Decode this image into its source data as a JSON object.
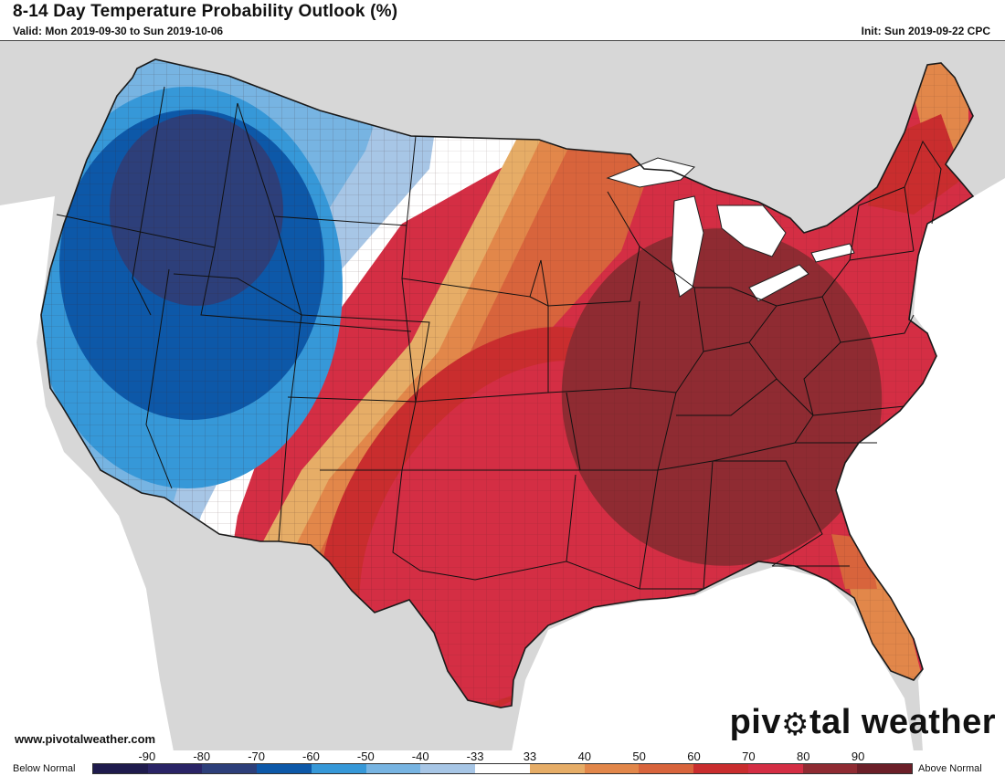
{
  "header": {
    "title": "8-14 Day Temperature Probability Outlook (%)",
    "valid": "Valid: Mon 2019-09-30 to Sun 2019-10-06",
    "init": "Init: Sun 2019-09-22 CPC"
  },
  "footer": {
    "website": "www.pivotalweather.com",
    "brand_prefix": "piv",
    "brand_suffix": "tal weather"
  },
  "legend": {
    "below_label": "Below Normal",
    "above_label": "Above Normal",
    "ticks": [
      "-90",
      "-80",
      "-70",
      "-60",
      "-50",
      "-40",
      "-33",
      "33",
      "40",
      "50",
      "60",
      "70",
      "80",
      "90"
    ],
    "colors": [
      "#1f1b4d",
      "#2a2466",
      "#2d3f7a",
      "#0d58a8",
      "#3698d8",
      "#77b4e2",
      "#a7c6e6",
      "#ffffff",
      "#e6ad67",
      "#e2874a",
      "#d8643c",
      "#c92d2e",
      "#d42e44",
      "#8f2b32",
      "#6b1f28"
    ]
  },
  "map": {
    "background_color": "#d7d7d7",
    "land_color": "#e8e8e8",
    "ocean_color": "#ffffff"
  }
}
